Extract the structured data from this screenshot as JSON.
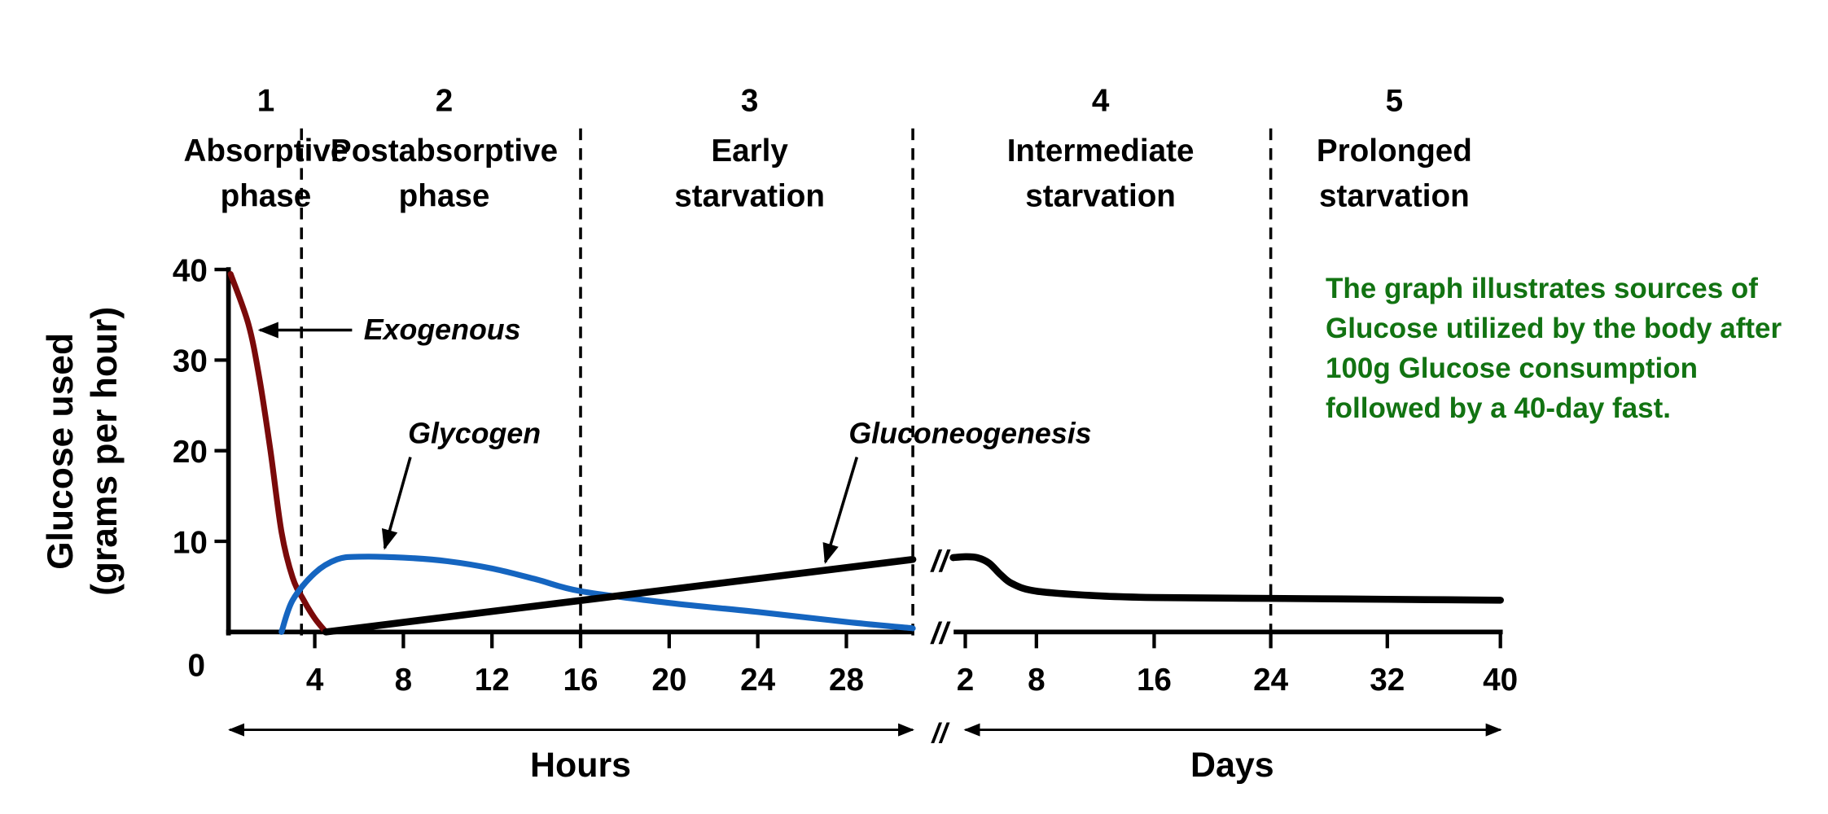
{
  "chart_data": {
    "type": "line",
    "ylabel_line1": "Glucose used",
    "ylabel_line2": "(grams per hour)",
    "ylim": [
      0,
      40
    ],
    "yticks": [
      "0",
      "10",
      "20",
      "30",
      "40"
    ],
    "hours_ticks": [
      "4",
      "8",
      "12",
      "16",
      "20",
      "24",
      "28"
    ],
    "days_ticks": [
      "2",
      "8",
      "16",
      "24",
      "32",
      "40"
    ],
    "xlabel_hours": "Hours",
    "xlabel_days": "Days",
    "phases": [
      {
        "number": "1",
        "line1": "Absorptive",
        "line2": "phase"
      },
      {
        "number": "2",
        "line1": "Postabsorptive",
        "line2": "phase"
      },
      {
        "number": "3",
        "line1": "Early",
        "line2": "starvation"
      },
      {
        "number": "4",
        "line1": "Intermediate",
        "line2": "starvation"
      },
      {
        "number": "5",
        "line1": "Prolonged",
        "line2": "starvation"
      }
    ],
    "phase_boundaries": {
      "hours": [
        3.4,
        16,
        31
      ],
      "days": [
        24
      ]
    },
    "series": [
      {
        "name": "Exogenous",
        "color": "#7a0a0a",
        "unit": "hours",
        "x": [
          0.2,
          1,
          1.5,
          2,
          2.5,
          3,
          3.5,
          4,
          4.5
        ],
        "y": [
          39.5,
          34,
          28,
          20,
          11,
          6,
          3.5,
          1.5,
          0
        ]
      },
      {
        "name": "Glycogen",
        "color": "#1565c0",
        "unit": "hours",
        "x": [
          2.5,
          3,
          4,
          5,
          6,
          8,
          10,
          12,
          14,
          16,
          20,
          24,
          28,
          31
        ],
        "y": [
          0,
          3.5,
          6.5,
          8,
          8.3,
          8.2,
          7.8,
          7,
          5.8,
          4.5,
          3.2,
          2.2,
          1.1,
          0.4
        ]
      },
      {
        "name": "Gluconeogenesis",
        "color": "#000000",
        "unit": "hours",
        "x": [
          4.5,
          31
        ],
        "y": [
          0,
          8
        ]
      },
      {
        "name": "Gluconeogenesis",
        "color": "#000000",
        "unit": "days",
        "x": [
          1.6,
          2,
          3,
          4,
          5,
          6,
          8,
          12,
          16,
          24,
          32,
          40
        ],
        "y": [
          8.2,
          8.3,
          8.2,
          7.6,
          6.3,
          5.3,
          4.5,
          4,
          3.8,
          3.7,
          3.6,
          3.5
        ]
      }
    ]
  },
  "note": "The graph illustrates sources of Glucose utilized by the body after 100g Glucose consumption followed by a 40-day fast.",
  "colors": {
    "note": "#127312"
  }
}
